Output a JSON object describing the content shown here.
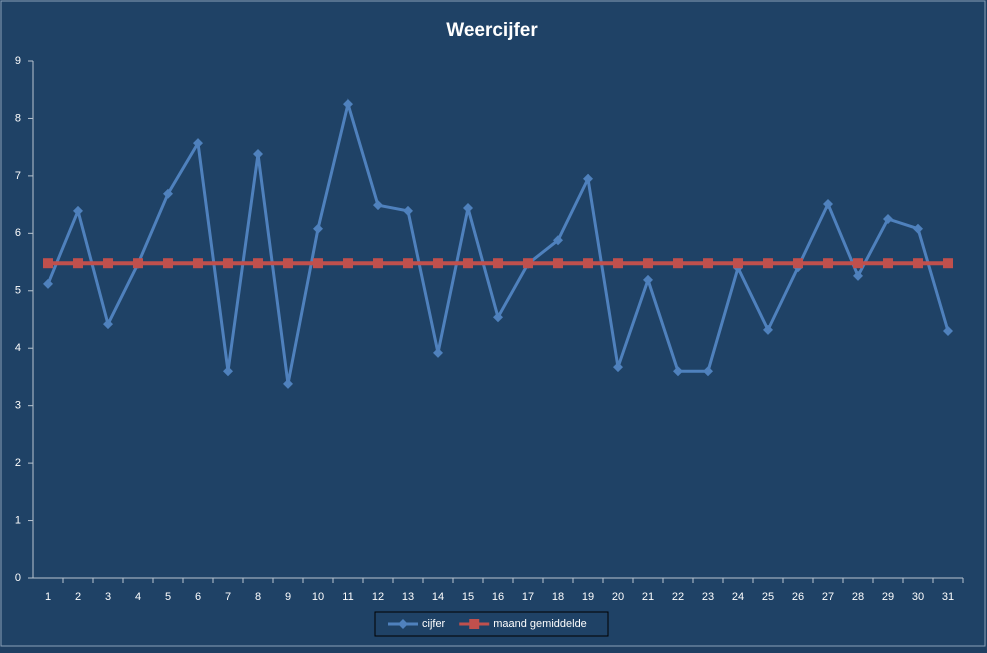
{
  "chart_data": {
    "type": "line",
    "title": "Weercijfer",
    "categories": [
      "1",
      "2",
      "3",
      "4",
      "5",
      "6",
      "7",
      "8",
      "9",
      "10",
      "11",
      "12",
      "13",
      "14",
      "15",
      "16",
      "17",
      "18",
      "19",
      "20",
      "21",
      "22",
      "23",
      "24",
      "25",
      "26",
      "27",
      "28",
      "29",
      "30",
      "31"
    ],
    "series": [
      {
        "name": "cijfer",
        "color": "#4f81bd",
        "marker": "diamond",
        "values": [
          5.12,
          6.39,
          4.42,
          5.47,
          6.69,
          7.57,
          3.6,
          7.38,
          3.38,
          6.08,
          8.25,
          6.49,
          6.39,
          3.92,
          6.44,
          4.54,
          5.47,
          5.88,
          6.95,
          3.67,
          5.19,
          3.6,
          3.6,
          5.4,
          4.32,
          5.41,
          6.51,
          5.26,
          6.25,
          6.08,
          4.3
        ]
      },
      {
        "name": "maand gemiddelde",
        "color": "#c0504d",
        "marker": "square",
        "values": [
          5.48,
          5.48,
          5.48,
          5.48,
          5.48,
          5.48,
          5.48,
          5.48,
          5.48,
          5.48,
          5.48,
          5.48,
          5.48,
          5.48,
          5.48,
          5.48,
          5.48,
          5.48,
          5.48,
          5.48,
          5.48,
          5.48,
          5.48,
          5.48,
          5.48,
          5.48,
          5.48,
          5.48,
          5.48,
          5.48,
          5.48
        ]
      }
    ],
    "ylim": [
      0,
      9
    ],
    "yticks": [
      0,
      1,
      2,
      3,
      4,
      5,
      6,
      7,
      8,
      9
    ],
    "grid": false,
    "legend": "bottom"
  }
}
